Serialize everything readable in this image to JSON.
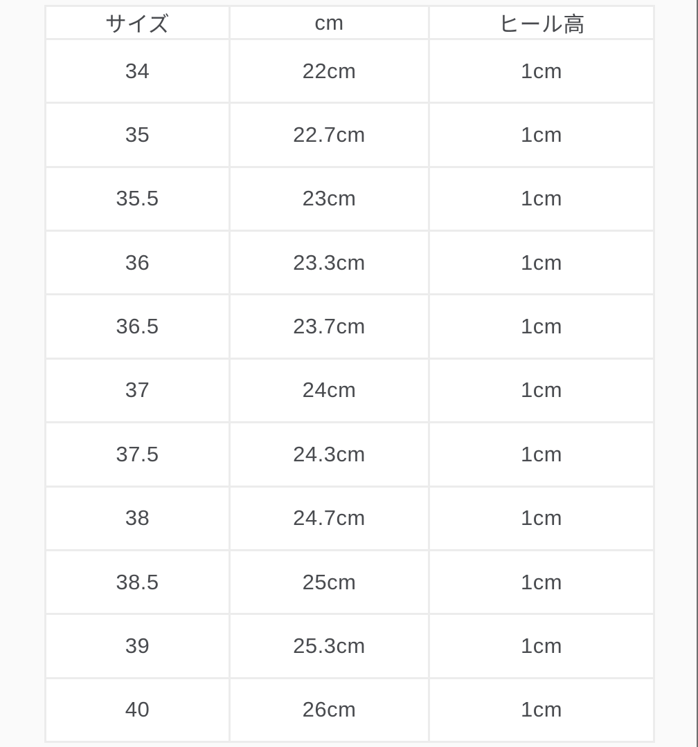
{
  "colors": {
    "page_background": "#fafafa",
    "cell_background": "#ffffff",
    "border": "#ececec",
    "text": "#494b4f",
    "scrollbar": "#6f6f6f"
  },
  "chart_data": {
    "type": "table",
    "title": "",
    "columns": [
      {
        "key": "size",
        "label": "サイズ"
      },
      {
        "key": "cm",
        "label": "cm"
      },
      {
        "key": "heel",
        "label": "ヒール高"
      }
    ],
    "rows": [
      [
        "34",
        "22cm",
        "1cm"
      ],
      [
        "35",
        "22.7cm",
        "1cm"
      ],
      [
        "35.5",
        "23cm",
        "1cm"
      ],
      [
        "36",
        "23.3cm",
        "1cm"
      ],
      [
        "36.5",
        "23.7cm",
        "1cm"
      ],
      [
        "37",
        "24cm",
        "1cm"
      ],
      [
        "37.5",
        "24.3cm",
        "1cm"
      ],
      [
        "38",
        "24.7cm",
        "1cm"
      ],
      [
        "38.5",
        "25cm",
        "1cm"
      ],
      [
        "39",
        "25.3cm",
        "1cm"
      ],
      [
        "40",
        "26cm",
        "1cm"
      ]
    ]
  }
}
